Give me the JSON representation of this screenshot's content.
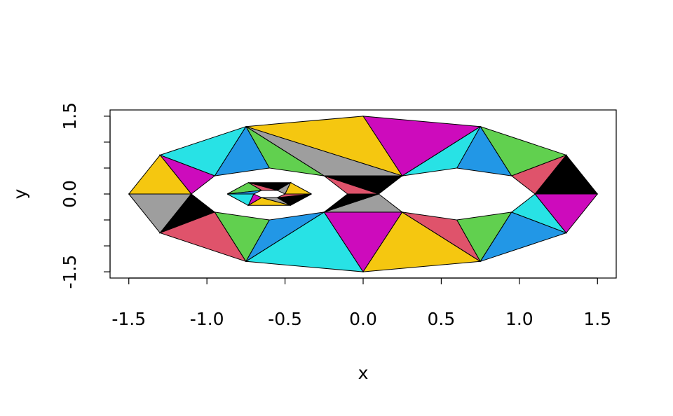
{
  "chart_data": {
    "type": "triangulation",
    "xlabel": "x",
    "ylabel": "y",
    "xlim": [
      -1.62,
      1.62
    ],
    "ylim": [
      -1.62,
      1.62
    ],
    "xticks": [
      -1.5,
      {
        "value": -1,
        "label": "-1.0"
      },
      -0.5,
      {
        "value": 0,
        "label": "0.0"
      },
      0.5,
      {
        "value": 1,
        "label": "1.0"
      },
      1.5
    ],
    "yticks": [
      -1.5,
      {
        "value": -1,
        "label": null
      },
      {
        "value": -0.5,
        "label": null
      },
      {
        "value": 0,
        "label": "0.0"
      },
      {
        "value": 0.5,
        "label": null
      },
      {
        "value": 1,
        "label": null
      },
      1.5
    ],
    "palette": [
      "#000000",
      "#DF536B",
      "#61D04F",
      "#2297E6",
      "#28E2E5",
      "#CD0BBC",
      "#F5C710",
      "#9E9E9E"
    ],
    "triangles": [
      {
        "x": [
          1.5,
          1.3,
          1.1
        ],
        "y": [
          0,
          0.75,
          0
        ]
      },
      {
        "x": [
          1.3,
          0.95,
          1.1
        ],
        "y": [
          0.75,
          0.35,
          0
        ]
      },
      {
        "x": [
          1.3,
          0.75,
          0.95
        ],
        "y": [
          0.75,
          1.3,
          0.35
        ]
      },
      {
        "x": [
          0.75,
          0.6,
          0.95
        ],
        "y": [
          1.3,
          0.5,
          0.35
        ]
      },
      {
        "x": [
          0.75,
          0.25,
          0.6
        ],
        "y": [
          1.3,
          0.35,
          0.5
        ]
      },
      {
        "x": [
          0.75,
          0,
          0.25
        ],
        "y": [
          1.3,
          1.5,
          0.35
        ]
      },
      {
        "x": [
          0,
          -0.75,
          0.25
        ],
        "y": [
          1.5,
          1.3,
          0.35
        ]
      },
      {
        "x": [
          -0.75,
          0.25,
          -0.25
        ],
        "y": [
          1.3,
          0.35,
          0.35
        ]
      },
      {
        "x": [
          -0.25,
          0.25,
          0.1
        ],
        "y": [
          0.35,
          0.35,
          0
        ]
      },
      {
        "x": [
          -0.25,
          0.1,
          -0.1
        ],
        "y": [
          0.35,
          0,
          0
        ]
      },
      {
        "x": [
          -0.75,
          -0.25,
          -0.6
        ],
        "y": [
          1.3,
          0.35,
          0.5
        ]
      },
      {
        "x": [
          -0.75,
          -0.6,
          -0.95
        ],
        "y": [
          1.3,
          0.5,
          0.35
        ]
      },
      {
        "x": [
          -0.75,
          -1.3,
          -0.95
        ],
        "y": [
          1.3,
          0.75,
          0.35
        ]
      },
      {
        "x": [
          -1.3,
          -1.1,
          -0.95
        ],
        "y": [
          0.75,
          0,
          0.35
        ]
      },
      {
        "x": [
          -1.3,
          -1.5,
          -1.1
        ],
        "y": [
          0.75,
          0,
          0
        ]
      },
      {
        "x": [
          -1.5,
          -1.3,
          -1.1
        ],
        "y": [
          0,
          -0.75,
          0
        ]
      },
      {
        "x": [
          -1.3,
          -0.95,
          -1.1
        ],
        "y": [
          -0.75,
          -0.35,
          0
        ]
      },
      {
        "x": [
          -1.3,
          -0.75,
          -0.95
        ],
        "y": [
          -0.75,
          -1.3,
          -0.35
        ]
      },
      {
        "x": [
          -0.75,
          -0.6,
          -0.95
        ],
        "y": [
          -1.3,
          -0.5,
          -0.35
        ]
      },
      {
        "x": [
          -0.75,
          -0.25,
          -0.6
        ],
        "y": [
          -1.3,
          -0.35,
          -0.5
        ]
      },
      {
        "x": [
          -0.75,
          0,
          -0.25
        ],
        "y": [
          -1.3,
          -1.5,
          -0.35
        ]
      },
      {
        "x": [
          0,
          0.25,
          -0.25
        ],
        "y": [
          -1.5,
          -0.35,
          -0.35
        ]
      },
      {
        "x": [
          0,
          0.75,
          0.25
        ],
        "y": [
          -1.5,
          -1.3,
          -0.35
        ]
      },
      {
        "x": [
          -0.25,
          0.25,
          0.1
        ],
        "y": [
          -0.35,
          -0.35,
          0
        ]
      },
      {
        "x": [
          -0.25,
          0.1,
          -0.1
        ],
        "y": [
          -0.35,
          0,
          0
        ]
      },
      {
        "x": [
          0.75,
          0.6,
          0.25
        ],
        "y": [
          -1.3,
          -0.5,
          -0.35
        ]
      },
      {
        "x": [
          0.75,
          0.95,
          0.6
        ],
        "y": [
          -1.3,
          -0.35,
          -0.5
        ]
      },
      {
        "x": [
          0.75,
          1.3,
          0.95
        ],
        "y": [
          -1.3,
          -0.75,
          -0.35
        ]
      },
      {
        "x": [
          1.3,
          1.1,
          0.95
        ],
        "y": [
          -0.75,
          0,
          -0.35
        ]
      },
      {
        "x": [
          1.3,
          1.5,
          1.1
        ],
        "y": [
          -0.75,
          0,
          0
        ]
      },
      {
        "x": [
          -0.33,
          -0.465,
          -0.5
        ],
        "y": [
          0,
          0.22,
          0
        ]
      },
      {
        "x": [
          -0.5,
          -0.465,
          -0.55
        ],
        "y": [
          0,
          0.22,
          0.07
        ]
      },
      {
        "x": [
          -0.465,
          -0.735,
          -0.55
        ],
        "y": [
          0.22,
          0.22,
          0.07
        ]
      },
      {
        "x": [
          -0.55,
          -0.735,
          -0.65
        ],
        "y": [
          0.07,
          0.22,
          0.07
        ]
      },
      {
        "x": [
          -0.735,
          -0.87,
          -0.65
        ],
        "y": [
          0.22,
          0,
          0.07
        ]
      },
      {
        "x": [
          -0.65,
          -0.87,
          -0.7
        ],
        "y": [
          0.07,
          0,
          0
        ]
      },
      {
        "x": [
          -0.87,
          -0.735,
          -0.7
        ],
        "y": [
          0,
          -0.22,
          0
        ]
      },
      {
        "x": [
          -0.7,
          -0.735,
          -0.65
        ],
        "y": [
          0,
          -0.22,
          -0.07
        ]
      },
      {
        "x": [
          -0.735,
          -0.465,
          -0.65
        ],
        "y": [
          -0.22,
          -0.22,
          -0.07
        ]
      },
      {
        "x": [
          -0.65,
          -0.465,
          -0.55
        ],
        "y": [
          -0.07,
          -0.22,
          -0.07
        ]
      },
      {
        "x": [
          -0.465,
          -0.33,
          -0.55
        ],
        "y": [
          -0.22,
          0,
          -0.07
        ]
      },
      {
        "x": [
          -0.55,
          -0.33,
          -0.5
        ],
        "y": [
          -0.07,
          0,
          0
        ]
      }
    ]
  }
}
